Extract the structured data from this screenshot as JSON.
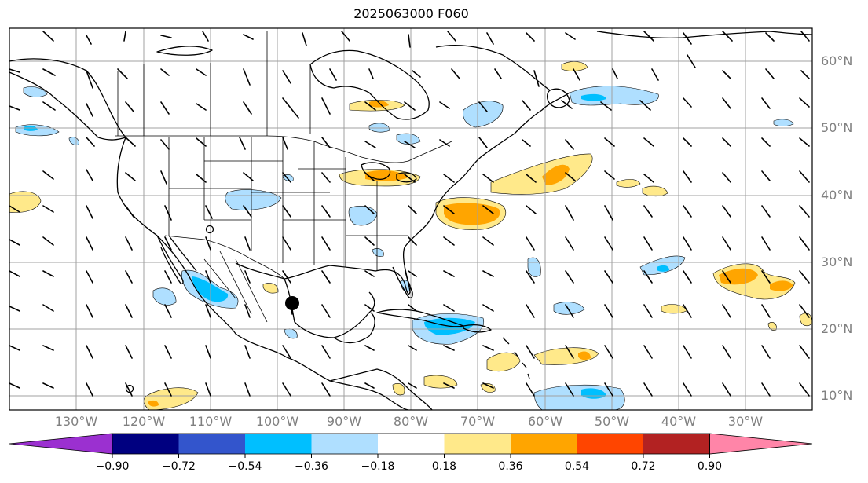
{
  "title": "2025063000 F060",
  "map": {
    "projection": "plate-carree",
    "lon_range": [
      -139,
      -19
    ],
    "lat_range": [
      7.5,
      64.5
    ],
    "grid": true,
    "colors": {
      "land_outline": "#000000",
      "grid": "#a0a0a0",
      "station_marker": "#000000"
    }
  },
  "lat_labels": [
    "10°N",
    "20°N",
    "30°N",
    "40°N",
    "50°N",
    "60°N"
  ],
  "lon_labels": [
    "130°W",
    "120°W",
    "110°W",
    "100°W",
    "90°W",
    "80°W",
    "70°W",
    "60°W",
    "50°W",
    "40°W",
    "30°W"
  ],
  "colorbar": {
    "extend": "both",
    "ticks": [
      "−0.90",
      "−0.72",
      "−0.54",
      "−0.36",
      "−0.18",
      "0.18",
      "0.36",
      "0.54",
      "0.72",
      "0.90"
    ],
    "colors": [
      "#9b30d0",
      "#000080",
      "#3355cc",
      "#00bfff",
      "#afdfff",
      "#ffffff",
      "#ffe98a",
      "#ffa500",
      "#ff4500",
      "#b22222",
      "#ff85a8"
    ]
  }
}
